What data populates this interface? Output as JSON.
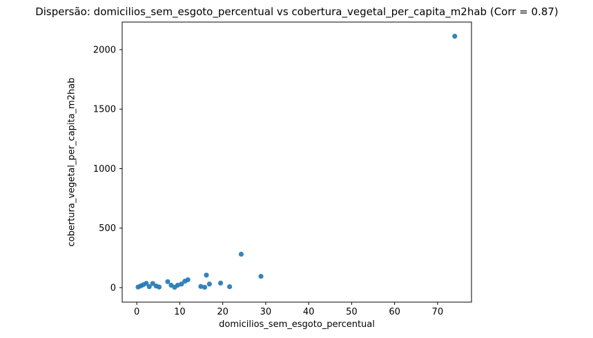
{
  "chart_data": {
    "type": "scatter",
    "title": "Dispersão: domicilios_sem_esgoto_percentual vs cobertura_vegetal_per_capita_m2hab (Corr = 0.87)",
    "xlabel": "domicilios_sem_esgoto_percentual",
    "ylabel": "cobertura_vegetal_per_capita_m2hab",
    "correlation": 0.87,
    "xlim": [
      -3.4,
      77.9
    ],
    "ylim": [
      -122,
      2232
    ],
    "xticks": [
      0,
      10,
      20,
      30,
      40,
      50,
      60,
      70
    ],
    "yticks": [
      0,
      500,
      1000,
      1500,
      2000
    ],
    "grid": false,
    "legend": false,
    "marker_color": "#1f77b4",
    "axis_color": "#000000",
    "background_color": "#ffffff",
    "points": [
      [
        0.3,
        5
      ],
      [
        0.9,
        14
      ],
      [
        1.5,
        24
      ],
      [
        2.2,
        36
      ],
      [
        2.9,
        8
      ],
      [
        3.7,
        35
      ],
      [
        4.5,
        14
      ],
      [
        5.2,
        5
      ],
      [
        7.2,
        50
      ],
      [
        8.0,
        20
      ],
      [
        8.8,
        3
      ],
      [
        9.5,
        20
      ],
      [
        10.4,
        30
      ],
      [
        11.2,
        54
      ],
      [
        11.9,
        66
      ],
      [
        14.9,
        10
      ],
      [
        15.8,
        3
      ],
      [
        16.2,
        105
      ],
      [
        16.9,
        30
      ],
      [
        19.5,
        38
      ],
      [
        21.6,
        8
      ],
      [
        24.3,
        281
      ],
      [
        28.9,
        95
      ],
      [
        74.0,
        2113
      ]
    ]
  }
}
